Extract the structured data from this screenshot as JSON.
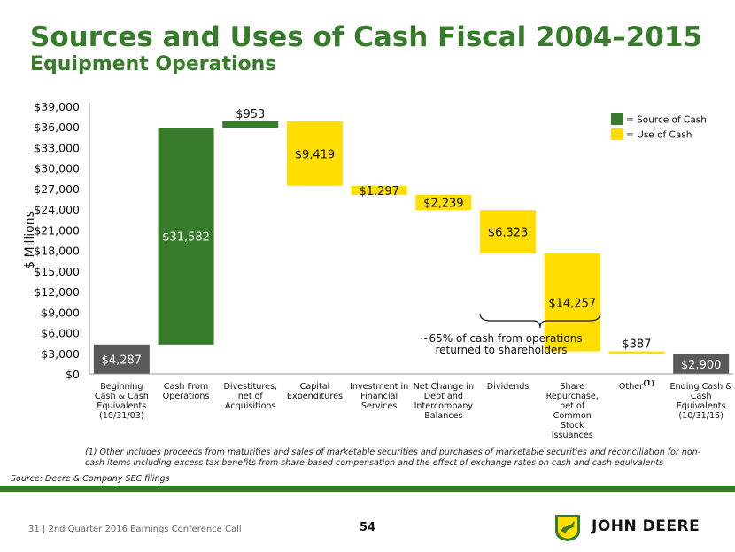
{
  "header": {
    "title": "Sources and Uses of Cash Fiscal 2004–2015",
    "subtitle": "Equipment Operations"
  },
  "colors": {
    "source": "#367c2b",
    "use": "#ffde00",
    "endpoint": "#595959",
    "title": "#367c2b"
  },
  "chart_data": {
    "type": "bar",
    "subtype": "waterfall",
    "ylabel": "$ Millions",
    "ylim": [
      0,
      39000
    ],
    "y_ticks": [
      0,
      3000,
      6000,
      9000,
      12000,
      15000,
      18000,
      21000,
      24000,
      27000,
      30000,
      33000,
      36000,
      39000
    ],
    "y_tick_labels": [
      "$0",
      "$3,000",
      "$6,000",
      "$9,000",
      "$12,000",
      "$15,000",
      "$18,000",
      "$21,000",
      "$24,000",
      "$27,000",
      "$30,000",
      "$33,000",
      "$36,000",
      "$39,000"
    ],
    "legend": [
      {
        "label": "= Source of Cash",
        "kind": "source"
      },
      {
        "label": "= Use of Cash",
        "kind": "use"
      }
    ],
    "bars": [
      {
        "category": [
          "Beginning",
          "Cash & Cash",
          "Equivalents",
          "(10/31/03)"
        ],
        "low": 0,
        "high": 4287,
        "kind": "endpoint",
        "label": "$4,287",
        "label_pos": "inside"
      },
      {
        "category": [
          "Cash From",
          "Operations"
        ],
        "low": 4287,
        "high": 35869,
        "kind": "source",
        "label": "$31,582",
        "label_pos": "inside"
      },
      {
        "category": [
          "Divestitures,",
          "net of",
          "Acquisitions"
        ],
        "low": 35869,
        "high": 36822,
        "kind": "source",
        "label": "$953",
        "label_pos": "above"
      },
      {
        "category": [
          "Capital",
          "Expenditures"
        ],
        "low": 27403,
        "high": 36822,
        "kind": "use",
        "label": "$9,419",
        "label_pos": "inside"
      },
      {
        "category": [
          "Investment in",
          "Financial",
          "Services"
        ],
        "low": 26106,
        "high": 27403,
        "kind": "use",
        "label": "$1,297",
        "label_pos": "inside"
      },
      {
        "category": [
          "Net Change in",
          "Debt and",
          "Intercompany",
          "Balances"
        ],
        "low": 23867,
        "high": 26106,
        "kind": "use",
        "label": "$2,239",
        "label_pos": "inside"
      },
      {
        "category": [
          "Dividends"
        ],
        "low": 17544,
        "high": 23867,
        "kind": "use",
        "label": "$6,323",
        "label_pos": "inside"
      },
      {
        "category": [
          "Share",
          "Repurchase,",
          "net of",
          "Common",
          "Stock",
          "Issuances"
        ],
        "low": 3287,
        "high": 17544,
        "kind": "use",
        "label": "$14,257",
        "label_pos": "inside"
      },
      {
        "category": [
          "Other"
        ],
        "category_note": "(1)",
        "low": 2900,
        "high": 3287,
        "kind": "use",
        "label": "$387",
        "label_pos": "above"
      },
      {
        "category": [
          "Ending Cash &",
          "Cash",
          "Equivalents",
          "(10/31/15)"
        ],
        "low": 0,
        "high": 2900,
        "kind": "endpoint",
        "label": "$2,900",
        "label_pos": "inside"
      }
    ],
    "annotation": {
      "lines": [
        "~65% of cash from operations",
        "returned to shareholders"
      ],
      "brace_from": 6,
      "brace_to": 7
    }
  },
  "footnote": "(1) Other includes proceeds from maturities and sales of marketable securities and purchases of marketable securities and reconciliation for non-cash items including excess tax benefits from share-based compensation and the effect of exchange rates on cash and cash equivalents",
  "source": "Source: Deere & Company SEC filings",
  "footer": {
    "left": "31  |  2nd Quarter 2016 Earnings Conference Call",
    "page_number": "54",
    "logo_text": "JOHN DEERE",
    "logo_icon": "leaping-deer-icon"
  }
}
